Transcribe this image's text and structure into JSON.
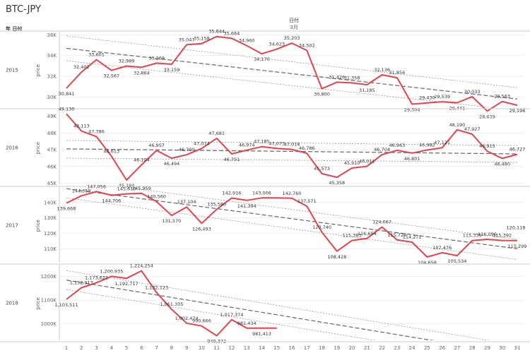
{
  "title": "BTC-JPY",
  "header": {
    "row_label": "年 日付",
    "col_label": "日付",
    "month_label": "3月"
  },
  "colors": {
    "line": "#e0454f",
    "trend": "#8a8a8a",
    "grid": "#e6e6e6",
    "border": "#cccccc"
  },
  "chart_data": {
    "type": "line",
    "x_axis_ticks": [
      "1",
      "2",
      "3",
      "4",
      "5",
      "6",
      "7",
      "8",
      "9",
      "10",
      "11",
      "12",
      "13",
      "14",
      "15",
      "16",
      "17",
      "18",
      "19",
      "20",
      "21",
      "22",
      "23",
      "24",
      "25",
      "26",
      "27",
      "28",
      "29",
      "30",
      "31"
    ],
    "ylabel": "price",
    "panels": [
      {
        "name": "2015",
        "ylim": [
          29000,
          36300
        ],
        "ticks": [
          30000,
          32000,
          34000,
          36000
        ],
        "tick_labels": [
          "30K",
          "32K",
          "34K",
          "36K"
        ],
        "x": [
          1,
          2,
          3,
          4,
          5,
          6,
          7,
          8,
          9,
          10,
          11,
          12,
          13,
          14,
          15,
          16,
          17,
          18,
          19,
          20,
          21,
          22,
          23,
          24,
          25,
          26,
          27,
          28,
          29,
          30,
          31
        ],
        "y": [
          30841,
          32402,
          33601,
          32567,
          32989,
          32864,
          33269,
          33159,
          35047,
          35158,
          35844,
          35664,
          34960,
          34170,
          34623,
          35203,
          34502,
          30800,
          31426,
          31358,
          31185,
          32136,
          31856,
          29304,
          29430,
          29539,
          29441,
          30033,
          28639,
          29563,
          29196
        ],
        "labels": [
          "30,841",
          "32,402",
          "33,601",
          "32,567",
          "32,989",
          "32,864",
          "33,269",
          "33,159",
          "35,047",
          "35,158",
          "35,844",
          "35,664",
          "34,960",
          "34,170",
          "34,623",
          "35,203",
          "34,502",
          "30,800",
          "31,426",
          "31,358",
          "31,185",
          "32,136",
          "31,856",
          "29,304",
          "29,430",
          "29,539",
          "29,441",
          "30,033",
          "28,639",
          "29,563",
          "29,196"
        ],
        "trend": {
          "y1": 34700,
          "y31": 29800,
          "band_y1": [
            35900,
            33500
          ],
          "band_y31": [
            30900,
            28700
          ]
        }
      },
      {
        "name": "2016",
        "ylim": [
          44900,
          49400
        ],
        "ticks": [
          45000,
          46000,
          47000,
          48000,
          49000
        ],
        "tick_labels": [
          "45K",
          "46K",
          "47K",
          "48K",
          "49K"
        ],
        "x": [
          1,
          2,
          3,
          4,
          5,
          6,
          7,
          8,
          9,
          10,
          11,
          12,
          13,
          14,
          15,
          16,
          17,
          18,
          19,
          20,
          21,
          22,
          23,
          24,
          25,
          26,
          27,
          28,
          29,
          30,
          31
        ],
        "y": [
          49130,
          48113,
          47786,
          46613,
          45194,
          46104,
          46957,
          46494,
          46700,
          47074,
          47681,
          46751,
          46974,
          47185,
          47073,
          47018,
          46786,
          45573,
          45358,
          45910,
          46011,
          46704,
          46963,
          46801,
          46982,
          47121,
          48190,
          47927,
          46915,
          46480,
          46727
        ],
        "labels": [
          "49,130",
          "48,113",
          "47,786",
          "46,613",
          "45,194",
          "46,104",
          "46,957",
          "46,494",
          "46,700",
          "47,074",
          "47,681",
          "46,751",
          "46,974",
          "47,185",
          "47,073",
          "47,018",
          "46,786",
          "45,573",
          "45,358",
          "45,910",
          "46,011",
          "46,704",
          "46,963",
          "46,801",
          "46,982",
          "47,121",
          "48,190",
          "47,927",
          "46,915",
          "46,480",
          "46,727"
        ],
        "trend": {
          "y1": 47050,
          "y31": 46750,
          "band_y1": [
            47550,
            46500
          ],
          "band_y31": [
            47250,
            46250
          ]
        }
      },
      {
        "name": "2017",
        "ylim": [
          101000,
          150000
        ],
        "ticks": [
          110000,
          120000,
          130000,
          140000
        ],
        "tick_labels": [
          "110K",
          "120K",
          "130K",
          "140K"
        ],
        "x": [
          1,
          2,
          3,
          4,
          5,
          6,
          7,
          8,
          9,
          10,
          11,
          12,
          13,
          14,
          15,
          16,
          17,
          18,
          19,
          20,
          21,
          22,
          23,
          24,
          25,
          26,
          27,
          28,
          29,
          30,
          31
        ],
        "y": [
          139668,
          144359,
          147056,
          144706,
          145610,
          145959,
          140560,
          131570,
          137104,
          126493,
          135580,
          142916,
          141394,
          143006,
          143006,
          142760,
          137571,
          120740,
          108428,
          115383,
          116654,
          124067,
          115728,
          114271,
          104658,
          107476,
          105534,
          115335,
          116096,
          115392,
          115299
        ],
        "labels": [
          "139,668",
          "144,359",
          "147,056",
          "144,706",
          "145,610",
          "145,959",
          "140,560",
          "131,570",
          "137,104",
          "126,493",
          "135,580",
          "142,916",
          "141,394",
          "143,006",
          "",
          "142,760",
          "137,571",
          "120,740",
          "108,428",
          "115,383",
          "116,654",
          "124,067",
          "115,728",
          "114,271",
          "104,658",
          "107,476",
          "105,534",
          "115,335",
          "116,096",
          "115,392",
          "115,299"
        ],
        "extra_label": "120,118",
        "trend": {
          "y1": 149000,
          "y31": 110000,
          "band_y1": [
            155000,
            143000
          ],
          "band_y31": [
            116000,
            103000
          ]
        }
      },
      {
        "name": "2018",
        "ylim": [
          930000,
          1250000
        ],
        "ticks": [
          1000000,
          1100000,
          1200000
        ],
        "tick_labels": [
          "1000K",
          "1100K",
          "1200K"
        ],
        "x": [
          1,
          2,
          3,
          4,
          5,
          6,
          7,
          8,
          9,
          10,
          11,
          12,
          13,
          14,
          15
        ],
        "y": [
          1103511,
          1152913,
          1173622,
          1200935,
          1192717,
          1224254,
          1132123,
          1061335,
          1002474,
          990666,
          949372,
          1017374,
          981434,
          981413,
          981413
        ],
        "labels": [
          "1,103,511",
          "1,152,913",
          "1,173,622",
          "1,200,935",
          "1,192,717",
          "1,224,254",
          "1,132,123",
          "1,061,335",
          "1,002,474",
          "990,666",
          "949,372",
          "1,017,374",
          "981,434",
          "981,413",
          ""
        ],
        "trend": {
          "y1": 1185000,
          "y31": 870000,
          "band_y1": [
            1225000,
            1145000
          ],
          "band_y31": [
            910000,
            830000
          ]
        }
      }
    ]
  }
}
